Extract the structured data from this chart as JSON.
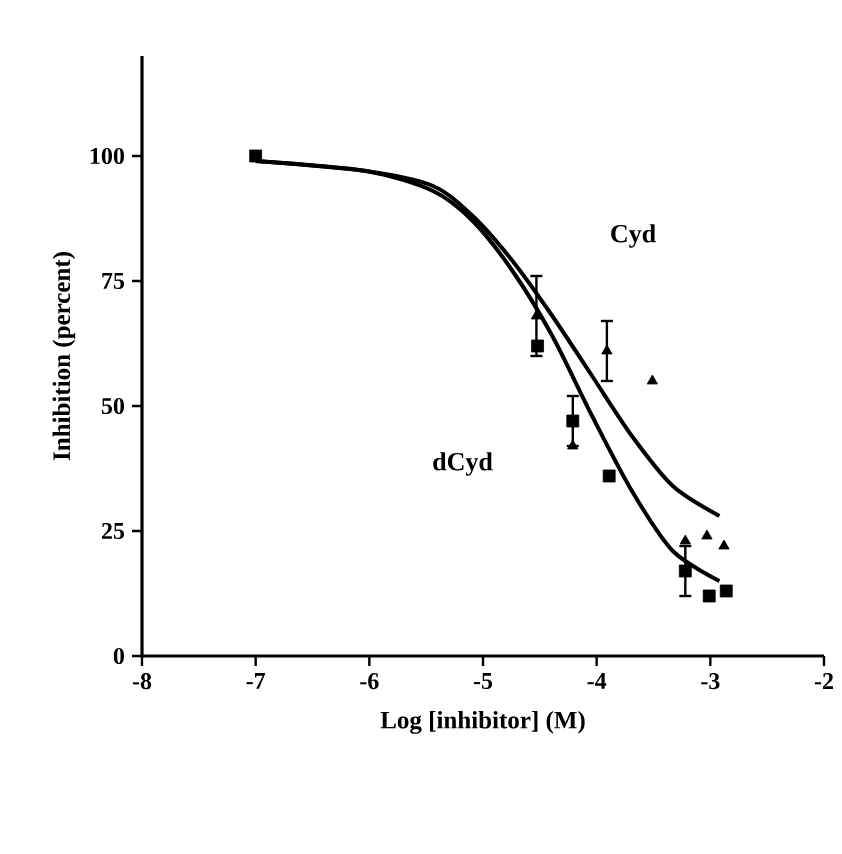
{
  "chart_data": {
    "type": "scatter",
    "xlabel": "Log [inhibitor] (M)",
    "ylabel": "Inhibition (percent)",
    "xlim": [
      -8,
      -2
    ],
    "ylim": [
      0,
      120
    ],
    "xticks": [
      -8,
      -7,
      -6,
      -5,
      -4,
      -3,
      -2
    ],
    "yticks": [
      0,
      25,
      50,
      75,
      100
    ],
    "grid": false,
    "series": [
      {
        "marker": "square",
        "color": "#000000",
        "x": [
          -7,
          -4.52,
          -4.21,
          -3.89,
          -3.22,
          -3.01,
          -2.86
        ],
        "values": [
          100,
          62,
          47,
          36,
          17,
          12,
          13
        ],
        "errors": [
          null,
          null,
          5,
          null,
          5,
          null,
          null
        ]
      },
      {
        "marker": "triangle",
        "color": "#000000",
        "x": [
          -4.53,
          -4.21,
          -3.91,
          -3.51,
          -3.22,
          -3.03,
          -2.88
        ],
        "values": [
          68,
          42,
          61,
          55,
          23,
          24,
          22
        ],
        "errors": [
          8,
          null,
          6,
          null,
          null,
          null,
          null
        ]
      },
      {
        "type": "line",
        "marker": "none",
        "color": "#000000",
        "x": [
          -7,
          -6.03,
          -5.44,
          -5.09,
          -4.74,
          -4.39,
          -4.04,
          -3.69,
          -3.33,
          -2.92
        ],
        "values": [
          99,
          97,
          94,
          88,
          79,
          68,
          56,
          44,
          34,
          28
        ]
      },
      {
        "type": "line",
        "marker": "none",
        "color": "#000000",
        "x": [
          -7,
          -6.03,
          -5.44,
          -5.09,
          -4.74,
          -4.39,
          -4.04,
          -3.69,
          -3.33,
          -2.92
        ],
        "values": [
          99,
          97,
          93,
          87,
          77,
          64,
          48,
          33,
          21,
          15
        ]
      }
    ],
    "annotations": [
      "Cyd",
      "dCyd"
    ]
  }
}
